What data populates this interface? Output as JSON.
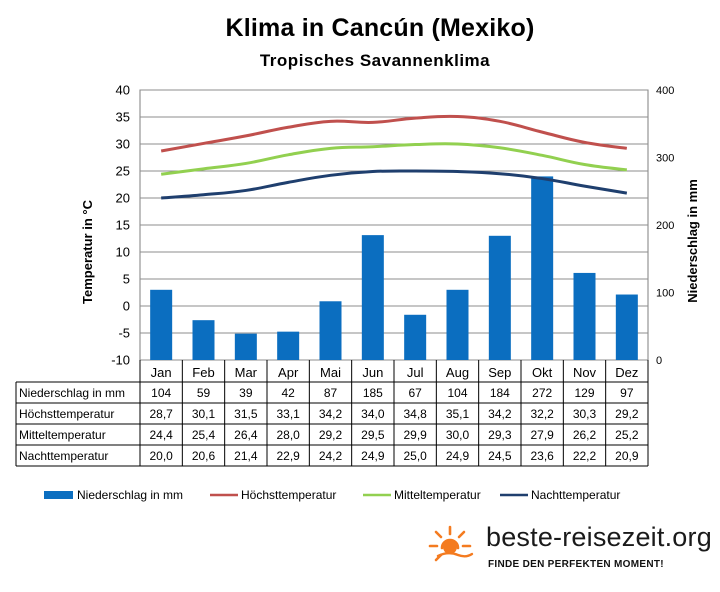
{
  "chart_data": {
    "type": "bar+line",
    "title": "Klima in Cancún (Mexiko)",
    "subtitle": "Tropisches  Savannenklima",
    "categories": [
      "Jan",
      "Feb",
      "Mar",
      "Apr",
      "Mai",
      "Jun",
      "Jul",
      "Aug",
      "Sep",
      "Okt",
      "Nov",
      "Dez"
    ],
    "ylabel": "Temperatur in °C",
    "y2label": "Niederschlag in mm",
    "ylim": [
      -10,
      40
    ],
    "y2lim": [
      0,
      400
    ],
    "yticks": [
      -10,
      -5,
      0,
      5,
      10,
      15,
      20,
      25,
      30,
      35,
      40
    ],
    "y2ticks": [
      0,
      100,
      200,
      300,
      400
    ],
    "grid": true,
    "legend_position": "bottom",
    "series": [
      {
        "name": "Niederschlag in mm",
        "type": "bar",
        "axis": "right",
        "color": "#0b6ec0",
        "values": [
          104,
          59,
          39,
          42,
          87,
          185,
          67,
          104,
          184,
          272,
          129,
          97
        ]
      },
      {
        "name": "Höchsttemperatur",
        "type": "line",
        "axis": "left",
        "color": "#c0504d",
        "values": [
          28.7,
          30.1,
          31.5,
          33.1,
          34.2,
          34.0,
          34.8,
          35.1,
          34.2,
          32.2,
          30.3,
          29.2
        ]
      },
      {
        "name": "Mitteltemperatur",
        "type": "line",
        "axis": "left",
        "color": "#92d050",
        "values": [
          24.4,
          25.4,
          26.4,
          28.0,
          29.2,
          29.5,
          29.9,
          30.0,
          29.3,
          27.9,
          26.2,
          25.2
        ]
      },
      {
        "name": "Nachttemperatur",
        "type": "line",
        "axis": "left",
        "color": "#1f3f6e",
        "values": [
          20.0,
          20.6,
          21.4,
          22.9,
          24.2,
          24.9,
          25.0,
          24.9,
          24.5,
          23.6,
          22.2,
          20.9
        ]
      }
    ],
    "table": {
      "rows": [
        {
          "label": "Niederschlag in mm",
          "values": [
            "104",
            "59",
            "39",
            "42",
            "87",
            "185",
            "67",
            "104",
            "184",
            "272",
            "129",
            "97"
          ]
        },
        {
          "label": "Höchsttemperatur",
          "values": [
            "28,7",
            "30,1",
            "31,5",
            "33,1",
            "34,2",
            "34,0",
            "34,8",
            "35,1",
            "34,2",
            "32,2",
            "30,3",
            "29,2"
          ]
        },
        {
          "label": "Mitteltemperatur",
          "values": [
            "24,4",
            "25,4",
            "26,4",
            "28,0",
            "29,2",
            "29,5",
            "29,9",
            "30,0",
            "29,3",
            "27,9",
            "26,2",
            "25,2"
          ]
        },
        {
          "label": "Nachttemperatur",
          "values": [
            "20,0",
            "20,6",
            "21,4",
            "22,9",
            "24,2",
            "24,9",
            "25,0",
            "24,9",
            "24,5",
            "23,6",
            "22,2",
            "20,9"
          ]
        }
      ]
    }
  },
  "branding": {
    "site": "beste-reisezeit.org",
    "tagline": "FINDE DEN PERFEKTEN MOMENT!",
    "sun_color": "#f47b20"
  }
}
